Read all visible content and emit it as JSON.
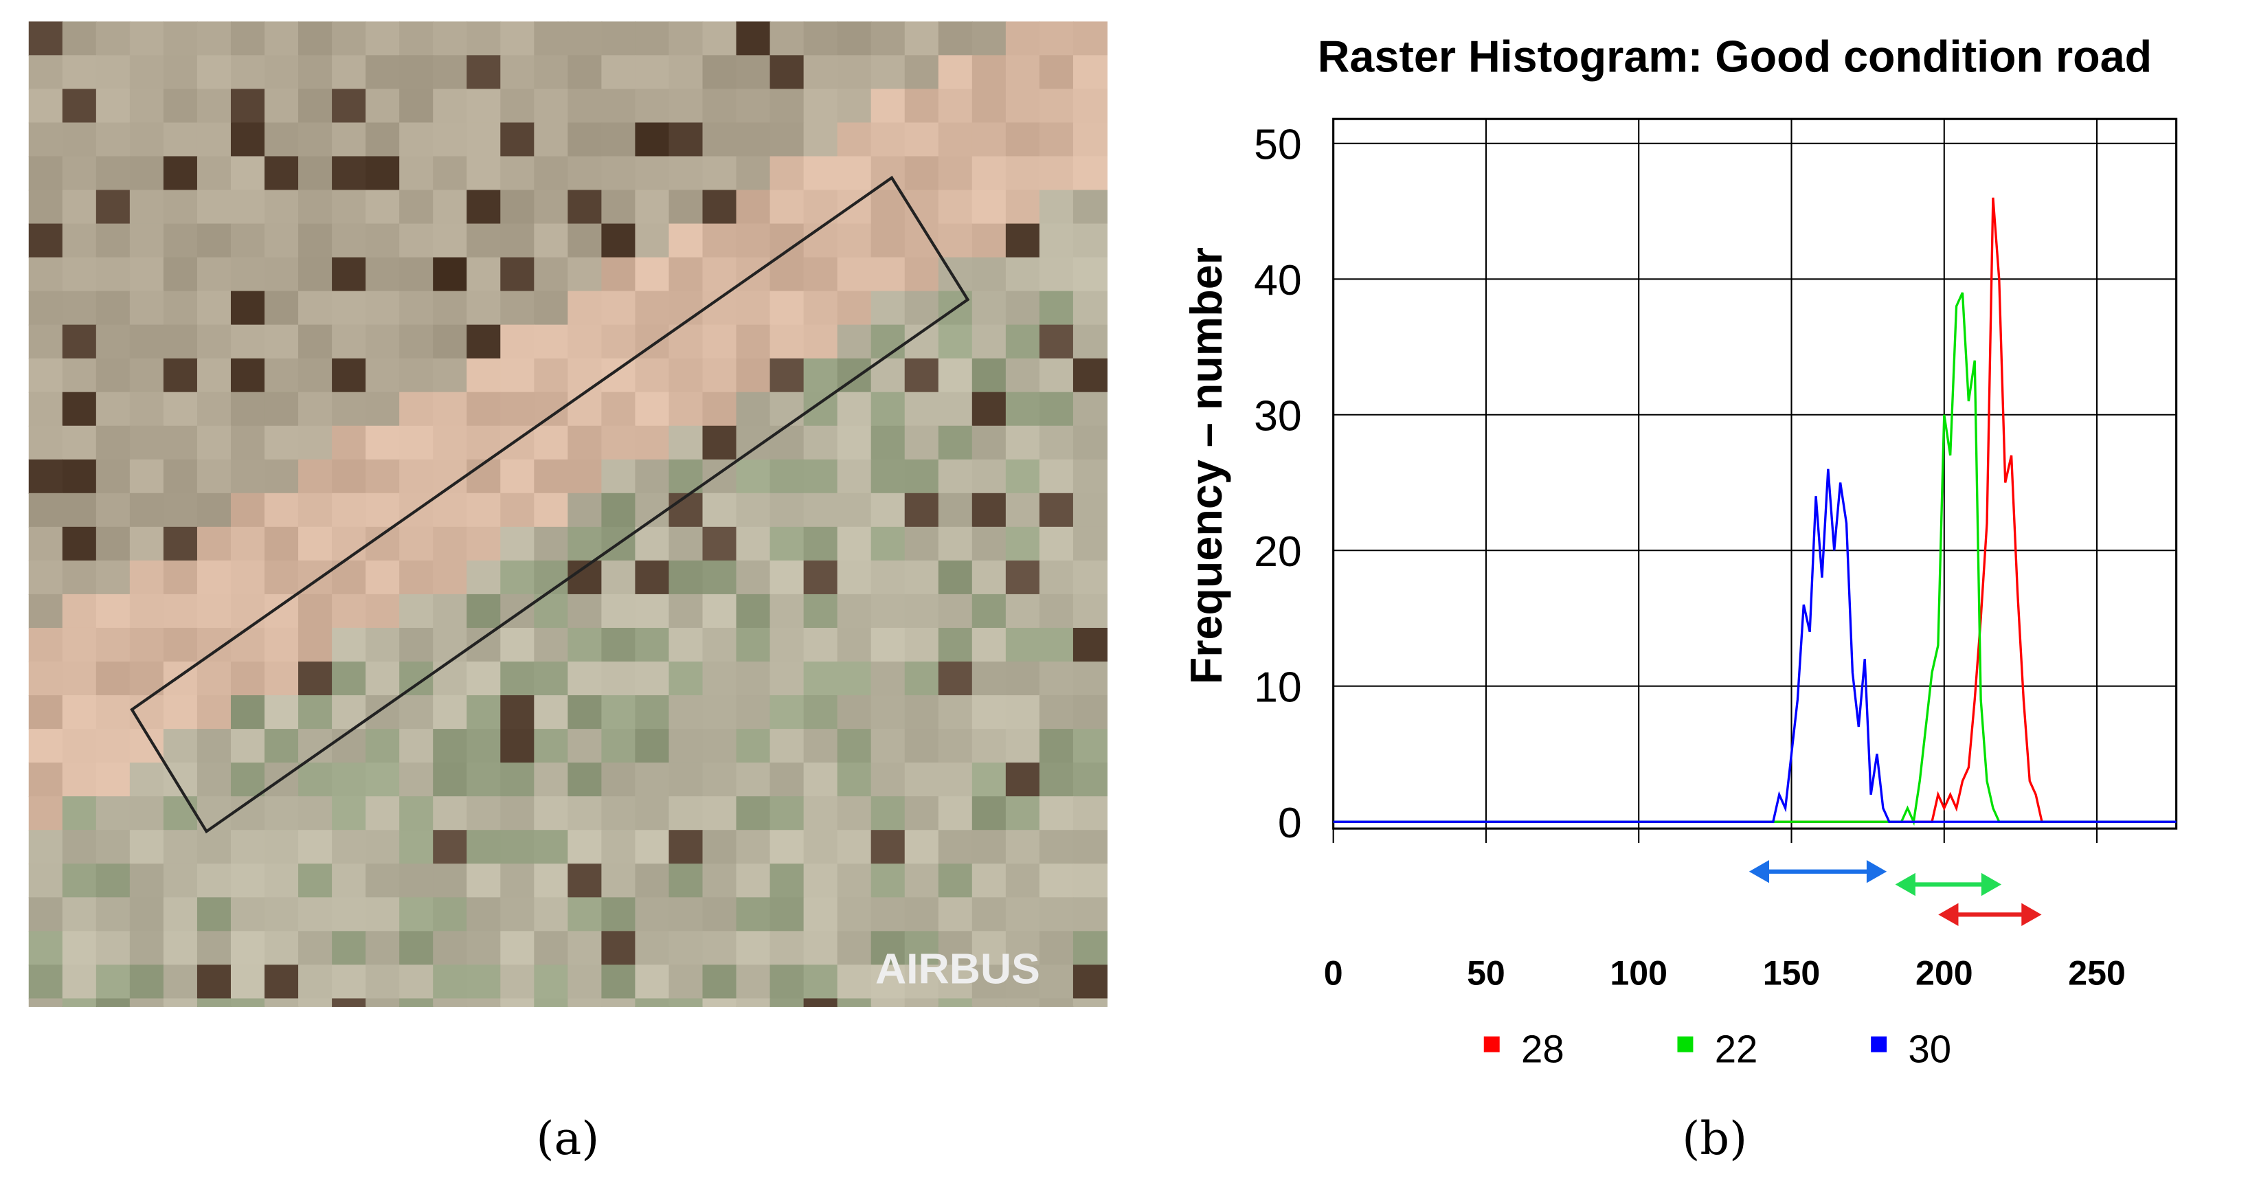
{
  "image_watermark": "AIRBUS",
  "captions": [
    "(a)",
    "(b)"
  ],
  "chart_data": {
    "type": "line",
    "title": "Raster Histogram: Good condition road",
    "y_label": "Frequency – number",
    "x": [
      0,
      140,
      142,
      144,
      146,
      148,
      150,
      152,
      154,
      156,
      158,
      160,
      162,
      164,
      166,
      168,
      170,
      172,
      174,
      176,
      178,
      180,
      182,
      184,
      186,
      188,
      190,
      192,
      194,
      196,
      198,
      200,
      202,
      204,
      206,
      208,
      210,
      212,
      214,
      216,
      218,
      220,
      222,
      224,
      226,
      228,
      230,
      232,
      234,
      276
    ],
    "series": [
      {
        "name": "28",
        "color": "#ff0000",
        "values": [
          0,
          0,
          0,
          0,
          0,
          0,
          0,
          0,
          0,
          0,
          0,
          0,
          0,
          0,
          0,
          0,
          0,
          0,
          0,
          0,
          0,
          0,
          0,
          0,
          0,
          0,
          0,
          0,
          0,
          0,
          2,
          1,
          2,
          1,
          3,
          4,
          9,
          15,
          22,
          46,
          40,
          25,
          27,
          17,
          9,
          3,
          2,
          0,
          0,
          0
        ]
      },
      {
        "name": "22",
        "color": "#00e000",
        "values": [
          0,
          0,
          0,
          0,
          0,
          0,
          0,
          0,
          0,
          0,
          0,
          0,
          0,
          0,
          0,
          0,
          0,
          0,
          0,
          0,
          0,
          0,
          0,
          0,
          0,
          1,
          0,
          3,
          7,
          11,
          13,
          30,
          27,
          38,
          39,
          31,
          34,
          9,
          3,
          1,
          0,
          0,
          0,
          0,
          0,
          0,
          0,
          0,
          0,
          0
        ]
      },
      {
        "name": "30",
        "color": "#0000ff",
        "values": [
          0,
          0,
          0,
          0,
          2,
          1,
          5,
          9,
          16,
          14,
          24,
          18,
          26,
          20,
          25,
          22,
          11,
          7,
          12,
          2,
          5,
          1,
          0,
          0,
          0,
          0,
          0,
          0,
          0,
          0,
          0,
          0,
          0,
          0,
          0,
          0,
          0,
          0,
          0,
          0,
          0,
          0,
          0,
          0,
          0,
          0,
          0,
          0,
          0,
          0
        ]
      }
    ],
    "xlim": [
      0,
      276
    ],
    "ylim": [
      -0.5,
      51.8
    ],
    "xticks": [
      0,
      50,
      100,
      150,
      200,
      250
    ],
    "yticks": [
      0,
      10,
      20,
      30,
      40,
      50
    ],
    "grid": true
  }
}
